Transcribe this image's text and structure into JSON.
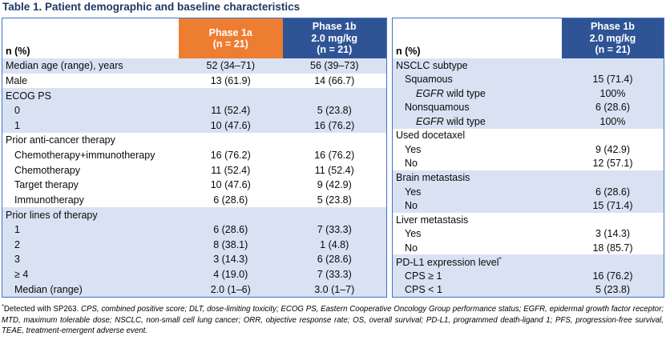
{
  "title": "Table 1. Patient demographic and baseline characteristics",
  "colors": {
    "orange": "#ED7D31",
    "header_blue": "#2F5496",
    "row_shade": "#D9E2F3",
    "border_blue": "#4472C4",
    "title_text": "#1F3864"
  },
  "left_table": {
    "header": {
      "label": "n (%)",
      "columns": [
        {
          "name": "phase-1a",
          "lines": [
            "Phase 1a",
            "(n = 21)"
          ],
          "bg": "orange"
        },
        {
          "name": "phase-1b",
          "lines": [
            "Phase 1b",
            "2.0 mg/kg",
            "(n = 21)"
          ],
          "bg": "header_blue"
        }
      ]
    },
    "rows": [
      {
        "label": "Median age (range), years",
        "indent": 0,
        "shade": true,
        "values": [
          "52 (34–71)",
          "56 (39–73)"
        ]
      },
      {
        "label": "Male",
        "indent": 0,
        "shade": false,
        "values": [
          "13 (61.9)",
          "14 (66.7)"
        ]
      },
      {
        "label": "ECOG PS",
        "indent": 0,
        "shade": true,
        "values": [
          "",
          ""
        ]
      },
      {
        "label": "0",
        "indent": 1,
        "shade": true,
        "values": [
          "11 (52.4)",
          "5 (23.8)"
        ]
      },
      {
        "label": "1",
        "indent": 1,
        "shade": true,
        "values": [
          "10 (47.6)",
          "16 (76.2)"
        ]
      },
      {
        "label": "Prior anti-cancer therapy",
        "indent": 0,
        "shade": false,
        "values": [
          "",
          ""
        ]
      },
      {
        "label": "Chemotherapy+immunotherapy",
        "indent": 1,
        "shade": false,
        "values": [
          "16 (76.2)",
          "16 (76.2)"
        ]
      },
      {
        "label": "Chemotherapy",
        "indent": 1,
        "shade": false,
        "values": [
          "11 (52.4)",
          "11 (52.4)"
        ]
      },
      {
        "label": "Target therapy",
        "indent": 1,
        "shade": false,
        "values": [
          "10 (47.6)",
          "9 (42.9)"
        ]
      },
      {
        "label": "Immunotherapy",
        "indent": 1,
        "shade": false,
        "values": [
          "6 (28.6)",
          "5 (23.8)"
        ]
      },
      {
        "label": "Prior lines of therapy",
        "indent": 0,
        "shade": true,
        "values": [
          "",
          ""
        ]
      },
      {
        "label": "1",
        "indent": 1,
        "shade": true,
        "values": [
          "6 (28.6)",
          "7 (33.3)"
        ]
      },
      {
        "label": "2",
        "indent": 1,
        "shade": true,
        "values": [
          "8 (38.1)",
          "1 (4.8)"
        ]
      },
      {
        "label": "3",
        "indent": 1,
        "shade": true,
        "values": [
          "3 (14.3)",
          "6 (28.6)"
        ]
      },
      {
        "label": "≥ 4",
        "indent": 1,
        "shade": true,
        "values": [
          "4 (19.0)",
          "7 (33.3)"
        ]
      },
      {
        "label": "Median (range)",
        "indent": 1,
        "shade": true,
        "values": [
          "2.0 (1–6)",
          "3.0 (1–7)"
        ]
      }
    ]
  },
  "right_table": {
    "header": {
      "label": "n (%)",
      "columns": [
        {
          "name": "phase-1b",
          "lines": [
            "Phase 1b",
            "2.0 mg/kg",
            "(n = 21)"
          ],
          "bg": "header_blue"
        }
      ]
    },
    "rows": [
      {
        "label": "NSCLC subtype",
        "indent": 0,
        "shade": true,
        "values": [
          ""
        ]
      },
      {
        "label": "Squamous",
        "indent": 1,
        "shade": true,
        "values": [
          "15 (71.4)"
        ]
      },
      {
        "label": " wild type",
        "italic_prefix": "EGFR",
        "indent": 2,
        "shade": true,
        "values": [
          "100%"
        ]
      },
      {
        "label": "Nonsquamous",
        "indent": 1,
        "shade": true,
        "values": [
          "6 (28.6)"
        ]
      },
      {
        "label": " wild type",
        "italic_prefix": "EGFR",
        "indent": 2,
        "shade": true,
        "values": [
          "100%"
        ]
      },
      {
        "label": "Used docetaxel",
        "indent": 0,
        "shade": false,
        "values": [
          ""
        ]
      },
      {
        "label": "Yes",
        "indent": 1,
        "shade": false,
        "values": [
          "9 (42.9)"
        ]
      },
      {
        "label": "No",
        "indent": 1,
        "shade": false,
        "values": [
          "12 (57.1)"
        ]
      },
      {
        "label": "Brain metastasis",
        "indent": 0,
        "shade": true,
        "values": [
          ""
        ]
      },
      {
        "label": "Yes",
        "indent": 1,
        "shade": true,
        "values": [
          "6 (28.6)"
        ]
      },
      {
        "label": "No",
        "indent": 1,
        "shade": true,
        "values": [
          "15 (71.4)"
        ]
      },
      {
        "label": "Liver metastasis",
        "indent": 0,
        "shade": false,
        "values": [
          ""
        ]
      },
      {
        "label": "Yes",
        "indent": 1,
        "shade": false,
        "values": [
          "3 (14.3)"
        ]
      },
      {
        "label": "No",
        "indent": 1,
        "shade": false,
        "values": [
          "18 (85.7)"
        ]
      },
      {
        "label": "PD-L1 expression level",
        "sup": "*",
        "indent": 0,
        "shade": true,
        "values": [
          ""
        ]
      },
      {
        "label": "CPS ≥ 1",
        "indent": 1,
        "shade": true,
        "values": [
          "16 (76.2)"
        ]
      },
      {
        "label": "CPS < 1",
        "indent": 1,
        "shade": true,
        "values": [
          "5 (23.8)"
        ]
      }
    ]
  },
  "footnote": {
    "marker": "*",
    "plain": "Detected with SP263. ",
    "abbreviations": "CPS, combined positive score; DLT, dose-limiting toxicity; ECOG PS, Eastern Cooperative Oncology Group performance status; EGFR, epidermal growth factor receptor; MTD, maximum tolerable dose; NSCLC, non-small cell lung cancer; ORR, objective response rate; OS, overall survival; PD-L1, programmed death-ligand 1; PFS, progression-free survival, TEAE, treatment-emergent adverse event."
  }
}
